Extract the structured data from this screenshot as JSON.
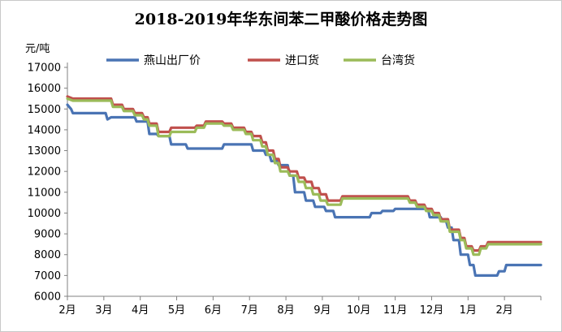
{
  "chart_data": {
    "type": "line",
    "title": "2018-2019年华东间苯二甲酸价格走势图",
    "ylabel": "元/吨",
    "ylim": [
      6000,
      17000
    ],
    "yticks": [
      6000,
      7000,
      8000,
      9000,
      10000,
      11000,
      12000,
      13000,
      14000,
      15000,
      16000,
      17000
    ],
    "x_ticks": [
      "2月",
      "3月",
      "4月",
      "5月",
      "6月",
      "7月",
      "8月",
      "9月",
      "10月",
      "11月",
      "12月",
      "1月",
      "2月"
    ],
    "xlim": [
      0,
      13
    ],
    "legend_position": "top",
    "series": [
      {
        "name": "燕山出厂价",
        "color": "#4a74b4",
        "points": [
          [
            0,
            15200
          ],
          [
            0.1,
            15000
          ],
          [
            0.15,
            14800
          ],
          [
            1.05,
            14800
          ],
          [
            1.1,
            14500
          ],
          [
            1.2,
            14600
          ],
          [
            1.85,
            14600
          ],
          [
            1.9,
            14400
          ],
          [
            2.2,
            14400
          ],
          [
            2.25,
            13800
          ],
          [
            2.45,
            13800
          ],
          [
            2.5,
            13700
          ],
          [
            2.8,
            13700
          ],
          [
            2.85,
            13300
          ],
          [
            3.25,
            13300
          ],
          [
            3.3,
            13100
          ],
          [
            4.25,
            13100
          ],
          [
            4.3,
            13300
          ],
          [
            5.05,
            13300
          ],
          [
            5.1,
            13000
          ],
          [
            5.4,
            13000
          ],
          [
            5.45,
            12800
          ],
          [
            5.55,
            12800
          ],
          [
            5.6,
            12500
          ],
          [
            5.75,
            12500
          ],
          [
            5.8,
            12300
          ],
          [
            6.05,
            12300
          ],
          [
            6.1,
            11800
          ],
          [
            6.2,
            11800
          ],
          [
            6.25,
            11000
          ],
          [
            6.5,
            11000
          ],
          [
            6.55,
            10600
          ],
          [
            6.75,
            10600
          ],
          [
            6.8,
            10300
          ],
          [
            7.05,
            10300
          ],
          [
            7.1,
            10100
          ],
          [
            7.3,
            10100
          ],
          [
            7.35,
            9800
          ],
          [
            8.3,
            9800
          ],
          [
            8.35,
            10000
          ],
          [
            8.6,
            10000
          ],
          [
            8.65,
            10100
          ],
          [
            8.95,
            10100
          ],
          [
            9.0,
            10200
          ],
          [
            9.9,
            10200
          ],
          [
            9.95,
            9800
          ],
          [
            10.25,
            9800
          ],
          [
            10.3,
            9600
          ],
          [
            10.4,
            9600
          ],
          [
            10.45,
            9300
          ],
          [
            10.55,
            9300
          ],
          [
            10.6,
            8700
          ],
          [
            10.75,
            8700
          ],
          [
            10.8,
            8000
          ],
          [
            11.0,
            8000
          ],
          [
            11.05,
            7500
          ],
          [
            11.15,
            7500
          ],
          [
            11.2,
            7000
          ],
          [
            11.8,
            7000
          ],
          [
            11.85,
            7200
          ],
          [
            12.0,
            7200
          ],
          [
            12.05,
            7500
          ],
          [
            13.0,
            7500
          ]
        ]
      },
      {
        "name": "进口货",
        "color": "#c0504d",
        "points": [
          [
            0,
            15600
          ],
          [
            0.15,
            15500
          ],
          [
            1.2,
            15500
          ],
          [
            1.25,
            15200
          ],
          [
            1.5,
            15200
          ],
          [
            1.55,
            15000
          ],
          [
            1.8,
            15000
          ],
          [
            1.85,
            14800
          ],
          [
            2.05,
            14800
          ],
          [
            2.1,
            14600
          ],
          [
            2.2,
            14600
          ],
          [
            2.25,
            14300
          ],
          [
            2.45,
            14300
          ],
          [
            2.5,
            13900
          ],
          [
            2.8,
            13900
          ],
          [
            2.85,
            14100
          ],
          [
            3.5,
            14100
          ],
          [
            3.55,
            14200
          ],
          [
            3.75,
            14200
          ],
          [
            3.8,
            14400
          ],
          [
            4.25,
            14400
          ],
          [
            4.3,
            14300
          ],
          [
            4.5,
            14300
          ],
          [
            4.55,
            14100
          ],
          [
            4.85,
            14100
          ],
          [
            4.9,
            13900
          ],
          [
            5.05,
            13900
          ],
          [
            5.1,
            13700
          ],
          [
            5.3,
            13700
          ],
          [
            5.35,
            13400
          ],
          [
            5.45,
            13400
          ],
          [
            5.5,
            13000
          ],
          [
            5.65,
            13000
          ],
          [
            5.7,
            12600
          ],
          [
            5.8,
            12600
          ],
          [
            5.85,
            12200
          ],
          [
            6.05,
            12200
          ],
          [
            6.1,
            12000
          ],
          [
            6.3,
            12000
          ],
          [
            6.35,
            11700
          ],
          [
            6.5,
            11700
          ],
          [
            6.55,
            11500
          ],
          [
            6.7,
            11500
          ],
          [
            6.75,
            11200
          ],
          [
            6.9,
            11200
          ],
          [
            6.95,
            10900
          ],
          [
            7.1,
            10900
          ],
          [
            7.15,
            10600
          ],
          [
            7.5,
            10600
          ],
          [
            7.55,
            10800
          ],
          [
            9.35,
            10800
          ],
          [
            9.4,
            10600
          ],
          [
            9.55,
            10600
          ],
          [
            9.6,
            10400
          ],
          [
            9.8,
            10400
          ],
          [
            9.85,
            10200
          ],
          [
            10.0,
            10200
          ],
          [
            10.05,
            10000
          ],
          [
            10.2,
            10000
          ],
          [
            10.25,
            9700
          ],
          [
            10.45,
            9700
          ],
          [
            10.5,
            9200
          ],
          [
            10.75,
            9200
          ],
          [
            10.8,
            8800
          ],
          [
            10.9,
            8800
          ],
          [
            10.95,
            8400
          ],
          [
            11.1,
            8400
          ],
          [
            11.15,
            8200
          ],
          [
            11.3,
            8200
          ],
          [
            11.35,
            8400
          ],
          [
            11.5,
            8400
          ],
          [
            11.55,
            8600
          ],
          [
            13.0,
            8600
          ]
        ]
      },
      {
        "name": "台湾货",
        "color": "#9bbb59",
        "points": [
          [
            0,
            15500
          ],
          [
            0.15,
            15400
          ],
          [
            1.2,
            15400
          ],
          [
            1.25,
            15100
          ],
          [
            1.5,
            15100
          ],
          [
            1.55,
            14900
          ],
          [
            1.8,
            14900
          ],
          [
            1.85,
            14700
          ],
          [
            2.05,
            14700
          ],
          [
            2.1,
            14500
          ],
          [
            2.2,
            14500
          ],
          [
            2.25,
            14200
          ],
          [
            2.45,
            14200
          ],
          [
            2.5,
            13700
          ],
          [
            2.8,
            13700
          ],
          [
            2.85,
            13900
          ],
          [
            3.5,
            13900
          ],
          [
            3.55,
            14100
          ],
          [
            3.75,
            14100
          ],
          [
            3.8,
            14300
          ],
          [
            4.25,
            14300
          ],
          [
            4.3,
            14200
          ],
          [
            4.5,
            14200
          ],
          [
            4.55,
            14000
          ],
          [
            4.85,
            14000
          ],
          [
            4.9,
            13800
          ],
          [
            5.05,
            13800
          ],
          [
            5.1,
            13500
          ],
          [
            5.3,
            13500
          ],
          [
            5.35,
            13200
          ],
          [
            5.45,
            13200
          ],
          [
            5.5,
            12800
          ],
          [
            5.65,
            12800
          ],
          [
            5.7,
            12400
          ],
          [
            5.8,
            12400
          ],
          [
            5.85,
            12000
          ],
          [
            6.05,
            12000
          ],
          [
            6.1,
            11800
          ],
          [
            6.3,
            11800
          ],
          [
            6.35,
            11500
          ],
          [
            6.5,
            11500
          ],
          [
            6.55,
            11200
          ],
          [
            6.7,
            11200
          ],
          [
            6.75,
            10900
          ],
          [
            6.9,
            10900
          ],
          [
            6.95,
            10600
          ],
          [
            7.1,
            10600
          ],
          [
            7.15,
            10400
          ],
          [
            7.5,
            10400
          ],
          [
            7.55,
            10700
          ],
          [
            9.35,
            10700
          ],
          [
            9.4,
            10500
          ],
          [
            9.55,
            10500
          ],
          [
            9.6,
            10300
          ],
          [
            9.8,
            10300
          ],
          [
            9.85,
            10100
          ],
          [
            10.0,
            10100
          ],
          [
            10.05,
            9900
          ],
          [
            10.2,
            9900
          ],
          [
            10.25,
            9600
          ],
          [
            10.45,
            9600
          ],
          [
            10.5,
            9100
          ],
          [
            10.75,
            9100
          ],
          [
            10.8,
            8700
          ],
          [
            10.9,
            8700
          ],
          [
            10.95,
            8300
          ],
          [
            11.1,
            8300
          ],
          [
            11.15,
            8000
          ],
          [
            11.3,
            8000
          ],
          [
            11.35,
            8300
          ],
          [
            11.5,
            8300
          ],
          [
            11.55,
            8500
          ],
          [
            13.0,
            8500
          ]
        ]
      }
    ]
  }
}
